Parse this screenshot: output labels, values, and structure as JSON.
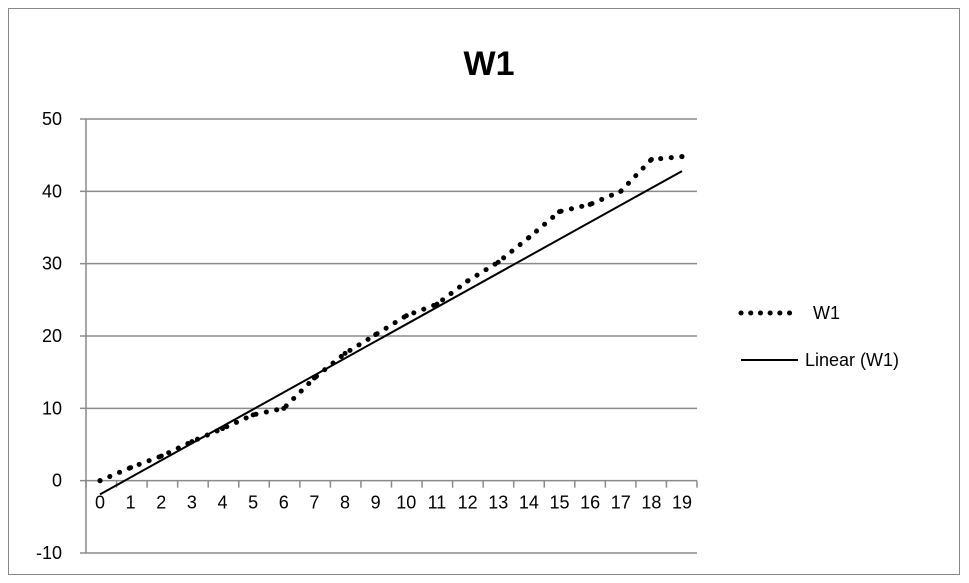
{
  "chart_data": {
    "type": "line",
    "title": "W1",
    "xlabel": "",
    "ylabel": "",
    "xlim": [
      0,
      19
    ],
    "ylim": [
      -10,
      50
    ],
    "x_ticks": [
      "0",
      "1",
      "2",
      "3",
      "4",
      "5",
      "6",
      "7",
      "8",
      "9",
      "10",
      "11",
      "12",
      "13",
      "14",
      "15",
      "16",
      "17",
      "18",
      "19"
    ],
    "y_ticks": [
      "50",
      "40",
      "30",
      "20",
      "10",
      "0",
      "-10"
    ],
    "grid": true,
    "legend_position": "right",
    "series": [
      {
        "name": "W1",
        "style": "dotted",
        "color": "#000000",
        "x": [
          0,
          1,
          2,
          3,
          4,
          5,
          6,
          7,
          8,
          9,
          10,
          11,
          12,
          13,
          14,
          15,
          16,
          17,
          18,
          19
        ],
        "y": [
          0,
          1.8,
          3.4,
          5.4,
          7.2,
          9.1,
          10,
          14.2,
          17.6,
          20.2,
          22.8,
          24.4,
          27.6,
          30.2,
          33.6,
          37.2,
          38.2,
          40,
          44.4,
          44.8
        ]
      },
      {
        "name": "Linear (W1)",
        "style": "solid",
        "color": "#000000",
        "x": [
          0,
          19
        ],
        "y": [
          -1.9,
          42.8
        ]
      }
    ]
  }
}
